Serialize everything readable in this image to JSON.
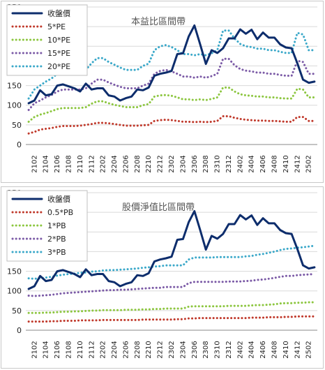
{
  "chart_data": [
    {
      "type": "line",
      "title": "本益比區間帶",
      "ylim": [
        0,
        350
      ],
      "yticks": [
        0,
        50,
        100,
        150,
        200,
        250,
        300,
        350
      ],
      "grid": "horizontal",
      "legend_position": "top-left",
      "x": [
        "2101",
        "2102",
        "2103",
        "2104",
        "2105",
        "2106",
        "2107",
        "2108",
        "2109",
        "2110",
        "2111",
        "2112",
        "2201",
        "2202",
        "2203",
        "2204",
        "2205",
        "2206",
        "2207",
        "2208",
        "2209",
        "2210",
        "2211",
        "2212",
        "2301",
        "2302",
        "2303",
        "2304",
        "2305",
        "2306",
        "2307",
        "2308",
        "2309",
        "2310",
        "2311",
        "2312",
        "2401",
        "2402",
        "2403",
        "2404",
        "2405",
        "2406",
        "2407",
        "2408",
        "2409",
        "2410",
        "2411",
        "2412",
        "2501",
        "2502",
        "2503"
      ],
      "x_tick_labels": [
        "2102",
        "2104",
        "2106",
        "2108",
        "2110",
        "2112",
        "2202",
        "2204",
        "2206",
        "2208",
        "2210",
        "2212",
        "2302",
        "2304",
        "2306",
        "2308",
        "2310",
        "2312",
        "2402",
        "2404",
        "2406",
        "2408",
        "2410",
        "2412",
        "2502"
      ],
      "series": [
        {
          "name": "收盤價",
          "color": "#0d2d6c",
          "style": "solid",
          "values": [
            105,
            112,
            138,
            125,
            128,
            150,
            153,
            148,
            143,
            135,
            155,
            140,
            143,
            143,
            125,
            122,
            112,
            118,
            122,
            140,
            138,
            145,
            175,
            180,
            183,
            187,
            230,
            232,
            275,
            303,
            255,
            205,
            240,
            233,
            245,
            270,
            270,
            293,
            282,
            292,
            268,
            285,
            272,
            272,
            255,
            247,
            245,
            207,
            165,
            157,
            160
          ]
        },
        {
          "name": "5*PE",
          "color": "#c0392b",
          "style": "dotted",
          "values": [
            28,
            32,
            38,
            40,
            42,
            45,
            47,
            47,
            47,
            48,
            50,
            52,
            55,
            55,
            54,
            52,
            50,
            48,
            48,
            48,
            49,
            50,
            60,
            62,
            63,
            62,
            60,
            58,
            58,
            57,
            58,
            57,
            58,
            60,
            72,
            72,
            68,
            65,
            63,
            62,
            61,
            61,
            60,
            60,
            59,
            58,
            58,
            70,
            70,
            60,
            60
          ]
        },
        {
          "name": "10*PE",
          "color": "#8cc63f",
          "style": "dotted",
          "values": [
            58,
            70,
            76,
            80,
            85,
            90,
            93,
            93,
            93,
            93,
            95,
            104,
            110,
            110,
            105,
            101,
            98,
            95,
            95,
            95,
            100,
            103,
            122,
            125,
            126,
            124,
            120,
            115,
            115,
            113,
            115,
            113,
            116,
            120,
            145,
            145,
            135,
            128,
            125,
            124,
            122,
            122,
            120,
            120,
            118,
            117,
            117,
            142,
            140,
            120,
            120
          ]
        },
        {
          "name": "15*PE",
          "color": "#7b5aa6",
          "style": "dotted",
          "values": [
            88,
            105,
            112,
            120,
            126,
            135,
            140,
            140,
            140,
            140,
            143,
            155,
            165,
            165,
            158,
            152,
            147,
            143,
            143,
            143,
            150,
            155,
            180,
            187,
            190,
            186,
            180,
            173,
            173,
            170,
            173,
            170,
            174,
            180,
            218,
            218,
            202,
            192,
            188,
            186,
            183,
            183,
            180,
            180,
            177,
            175,
            175,
            213,
            210,
            180,
            180
          ]
        },
        {
          "name": "20*PE",
          "color": "#3aa8c9",
          "style": "dotted",
          "values": [
            117,
            140,
            150,
            160,
            168,
            180,
            186,
            186,
            186,
            186,
            190,
            207,
            220,
            220,
            210,
            203,
            196,
            190,
            190,
            190,
            200,
            206,
            240,
            250,
            253,
            248,
            240,
            230,
            230,
            227,
            230,
            227,
            232,
            240,
            290,
            290,
            270,
            256,
            250,
            248,
            244,
            244,
            240,
            240,
            236,
            233,
            233,
            284,
            280,
            240,
            240
          ]
        }
      ]
    },
    {
      "type": "line",
      "title": "股價淨值比區間帶",
      "ylim": [
        0,
        350
      ],
      "yticks": [
        0,
        50,
        100,
        150,
        200,
        250,
        300,
        350
      ],
      "grid": "horizontal",
      "legend_position": "top-left",
      "x": [
        "2101",
        "2102",
        "2103",
        "2104",
        "2105",
        "2106",
        "2107",
        "2108",
        "2109",
        "2110",
        "2111",
        "2112",
        "2201",
        "2202",
        "2203",
        "2204",
        "2205",
        "2206",
        "2207",
        "2208",
        "2209",
        "2210",
        "2211",
        "2212",
        "2301",
        "2302",
        "2303",
        "2304",
        "2305",
        "2306",
        "2307",
        "2308",
        "2309",
        "2310",
        "2311",
        "2312",
        "2401",
        "2402",
        "2403",
        "2404",
        "2405",
        "2406",
        "2407",
        "2408",
        "2409",
        "2410",
        "2411",
        "2412",
        "2501",
        "2502",
        "2503"
      ],
      "x_tick_labels": [
        "2102",
        "2104",
        "2106",
        "2108",
        "2110",
        "2112",
        "2202",
        "2204",
        "2206",
        "2208",
        "2210",
        "2212",
        "2302",
        "2304",
        "2306",
        "2308",
        "2310",
        "2312",
        "2402",
        "2404",
        "2406",
        "2408",
        "2410",
        "2412",
        "2502"
      ],
      "series": [
        {
          "name": "收盤價",
          "color": "#0d2d6c",
          "style": "solid",
          "values": [
            105,
            112,
            138,
            125,
            128,
            150,
            153,
            148,
            143,
            135,
            155,
            140,
            143,
            143,
            125,
            122,
            112,
            118,
            122,
            140,
            138,
            145,
            175,
            180,
            183,
            187,
            230,
            232,
            275,
            303,
            255,
            205,
            240,
            233,
            245,
            270,
            270,
            293,
            282,
            292,
            268,
            285,
            272,
            272,
            255,
            247,
            245,
            207,
            165,
            157,
            160
          ]
        },
        {
          "name": "0.5*PB",
          "color": "#c0392b",
          "style": "dotted",
          "values": [
            22,
            22,
            22,
            22,
            23,
            23,
            24,
            24,
            24,
            25,
            25,
            25,
            25,
            26,
            26,
            26,
            26,
            26,
            26,
            26,
            27,
            27,
            27,
            27,
            27,
            27,
            28,
            28,
            30,
            30,
            31,
            31,
            31,
            31,
            31,
            31,
            31,
            31,
            31,
            32,
            32,
            32,
            33,
            33,
            33,
            34,
            34,
            35,
            35,
            35,
            35
          ]
        },
        {
          "name": "1*PB",
          "color": "#8cc63f",
          "style": "dotted",
          "values": [
            44,
            44,
            44,
            45,
            45,
            46,
            47,
            47,
            48,
            48,
            49,
            50,
            50,
            51,
            51,
            51,
            51,
            52,
            52,
            52,
            53,
            53,
            54,
            54,
            55,
            55,
            55,
            55,
            60,
            61,
            61,
            61,
            61,
            61,
            61,
            62,
            62,
            62,
            62,
            63,
            64,
            64,
            65,
            66,
            68,
            69,
            69,
            70,
            70,
            71,
            71
          ]
        },
        {
          "name": "2*PB",
          "color": "#7b5aa6",
          "style": "dotted",
          "values": [
            88,
            87,
            88,
            89,
            90,
            92,
            94,
            95,
            96,
            97,
            98,
            99,
            100,
            101,
            102,
            102,
            103,
            103,
            104,
            105,
            106,
            107,
            108,
            108,
            110,
            110,
            110,
            110,
            120,
            123,
            123,
            123,
            123,
            123,
            123,
            124,
            124,
            124,
            125,
            126,
            128,
            129,
            131,
            133,
            136,
            138,
            138,
            140,
            141,
            142,
            143
          ]
        },
        {
          "name": "3*PB",
          "color": "#3aa8c9",
          "style": "dotted",
          "values": [
            132,
            131,
            132,
            134,
            136,
            139,
            141,
            143,
            144,
            146,
            147,
            149,
            150,
            152,
            153,
            153,
            154,
            155,
            156,
            157,
            159,
            160,
            162,
            163,
            165,
            165,
            165,
            165,
            180,
            185,
            185,
            185,
            185,
            186,
            186,
            186,
            186,
            186,
            188,
            189,
            192,
            194,
            197,
            200,
            204,
            207,
            208,
            210,
            211,
            213,
            215
          ]
        }
      ]
    }
  ]
}
